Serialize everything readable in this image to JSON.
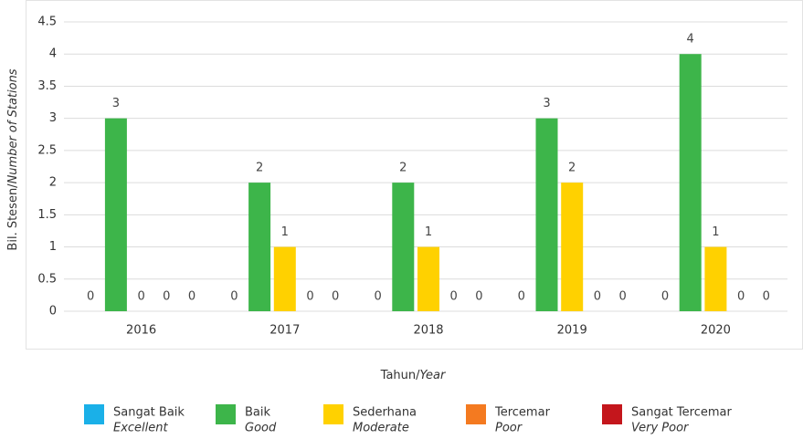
{
  "chart_data": {
    "type": "bar",
    "categories": [
      "2016",
      "2017",
      "2018",
      "2019",
      "2020"
    ],
    "series": [
      {
        "name": "Sangat Baik",
        "name_en": "Excellent",
        "color": "#1ab0e8",
        "values": [
          0,
          0,
          0,
          0,
          0
        ]
      },
      {
        "name": "Baik",
        "name_en": "Good",
        "color": "#3db54a",
        "values": [
          3,
          2,
          2,
          3,
          4
        ]
      },
      {
        "name": "Sederhana",
        "name_en": "Moderate",
        "color": "#ffd100",
        "values": [
          0,
          1,
          1,
          2,
          1
        ]
      },
      {
        "name": "Tercemar",
        "name_en": "Poor",
        "color": "#f47a20",
        "values": [
          0,
          0,
          0,
          0,
          0
        ]
      },
      {
        "name": "Sangat Tercemar",
        "name_en": "Very Poor",
        "color": "#c4161c",
        "values": [
          0,
          0,
          0,
          0,
          0
        ]
      }
    ],
    "ylabel": "Bil. Stesen/",
    "ylabel_en": "Number of Stations",
    "xlabel": "Tahun/",
    "xlabel_en": "Year",
    "ylim": [
      0,
      4.5
    ],
    "yticks": [
      0,
      0.5,
      1,
      1.5,
      2,
      2.5,
      3,
      3.5,
      4,
      4.5
    ],
    "grid": true
  }
}
